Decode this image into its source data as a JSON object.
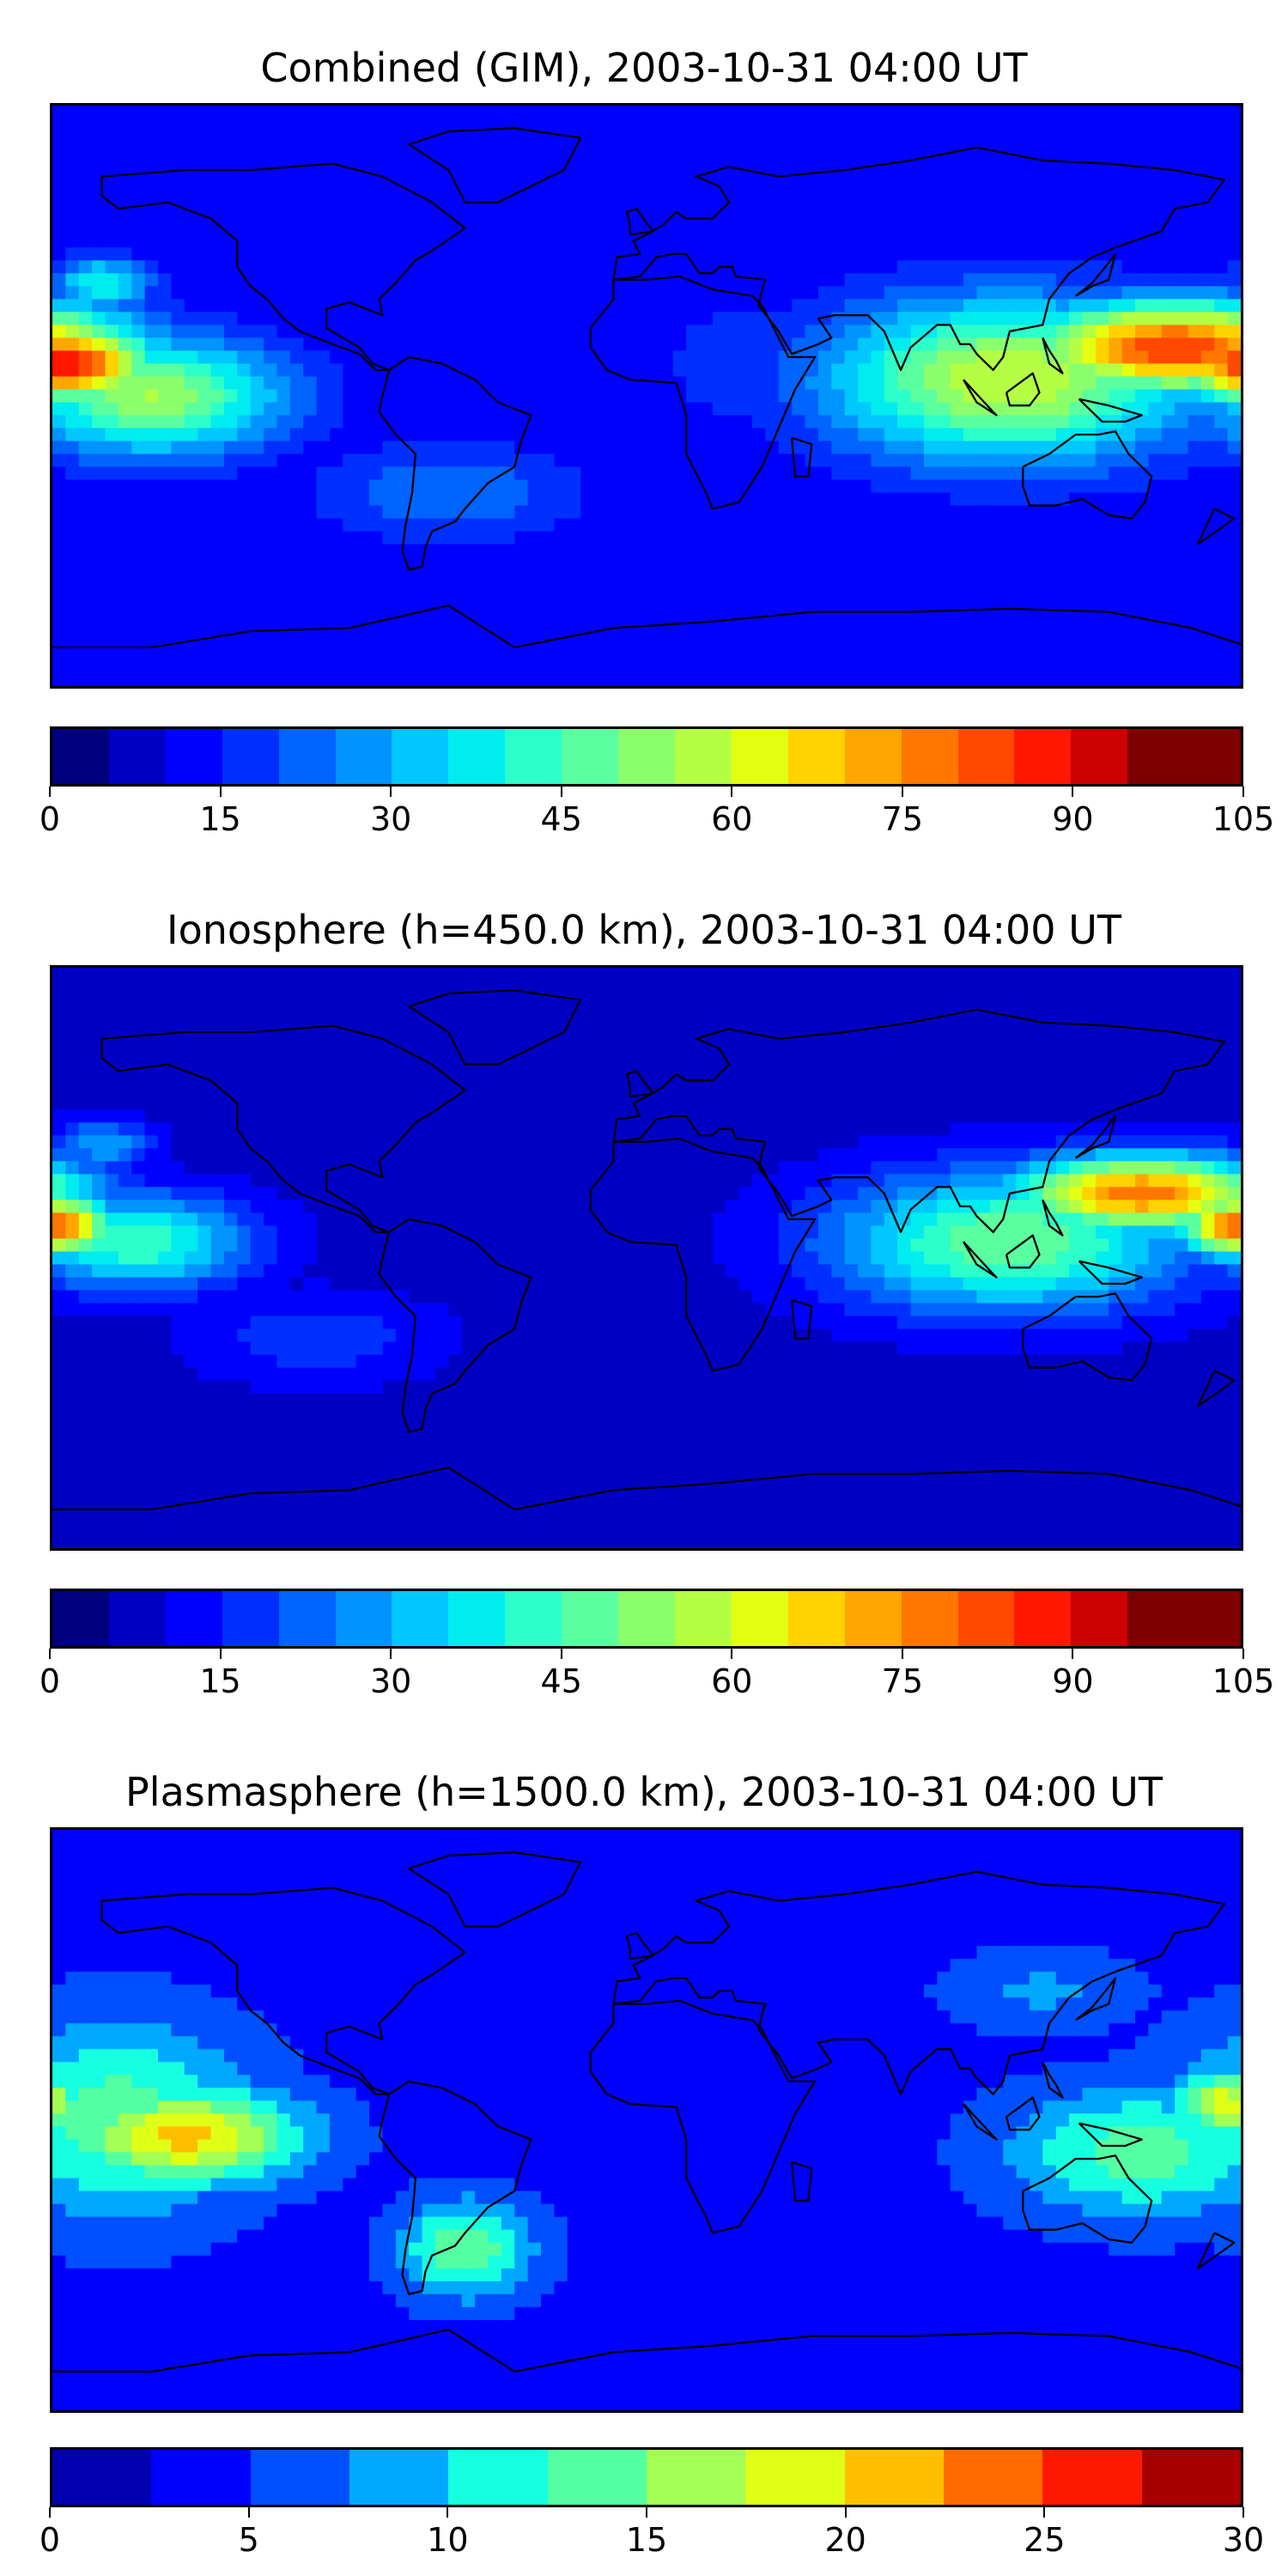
{
  "panels": [
    {
      "title": "Combined (GIM), 2003-10-31 04:00 UT",
      "colorbar": {
        "min": 0,
        "max": 105,
        "step": 5,
        "ticks": [
          "0",
          "15",
          "30",
          "45",
          "60",
          "75",
          "90",
          "105"
        ],
        "colors": [
          "#00007f",
          "#0000c4",
          "#0000ff",
          "#0030ff",
          "#0064ff",
          "#0094ff",
          "#00c8ff",
          "#00ecee",
          "#2dffca",
          "#5affa0",
          "#8bff6b",
          "#b4ff44",
          "#e5ff10",
          "#ffd200",
          "#ffa600",
          "#ff7700",
          "#ff4800",
          "#ff1700",
          "#cc0000",
          "#7f0000",
          "#7f0000"
        ]
      },
      "background_level": 10,
      "blobs": [
        {
          "lon": 160,
          "lat": 15,
          "level": 85,
          "spread": [
            45,
            14
          ]
        },
        {
          "lon": 110,
          "lat": 5,
          "level": 60,
          "spread": [
            55,
            25
          ]
        },
        {
          "lon": -175,
          "lat": 10,
          "level": 90,
          "spread": [
            25,
            12
          ]
        },
        {
          "lon": -150,
          "lat": 0,
          "level": 55,
          "spread": [
            40,
            18
          ]
        },
        {
          "lon": -165,
          "lat": 35,
          "level": 40,
          "spread": [
            15,
            8
          ]
        },
        {
          "lon": -60,
          "lat": -30,
          "level": 25,
          "spread": [
            40,
            15
          ]
        },
        {
          "lon": 30,
          "lat": 10,
          "level": 20,
          "spread": [
            25,
            20
          ]
        }
      ]
    },
    {
      "title": "Ionosphere  (h=450.0 km), 2003-10-31 04:00 UT",
      "colorbar": {
        "min": 0,
        "max": 105,
        "step": 5,
        "ticks": [
          "0",
          "15",
          "30",
          "45",
          "60",
          "75",
          "90",
          "105"
        ],
        "colors": [
          "#00007f",
          "#0000c4",
          "#0000ff",
          "#0030ff",
          "#0064ff",
          "#0094ff",
          "#00c8ff",
          "#00ecee",
          "#2dffca",
          "#5affa0",
          "#8bff6b",
          "#b4ff44",
          "#e5ff10",
          "#ffd200",
          "#ffa600",
          "#ff7700",
          "#ff4800",
          "#ff1700",
          "#cc0000",
          "#7f0000",
          "#7f0000"
        ]
      },
      "background_level": 7,
      "blobs": [
        {
          "lon": 150,
          "lat": 20,
          "level": 78,
          "spread": [
            40,
            12
          ]
        },
        {
          "lon": 110,
          "lat": 5,
          "level": 50,
          "spread": [
            55,
            22
          ]
        },
        {
          "lon": -180,
          "lat": 10,
          "level": 80,
          "spread": [
            20,
            10
          ]
        },
        {
          "lon": -155,
          "lat": 5,
          "level": 45,
          "spread": [
            35,
            15
          ]
        },
        {
          "lon": -165,
          "lat": 35,
          "level": 30,
          "spread": [
            15,
            8
          ]
        },
        {
          "lon": -100,
          "lat": -25,
          "level": 18,
          "spread": [
            40,
            15
          ]
        }
      ]
    },
    {
      "title": "Plasmasphere (h=1500.0 km), 2003-10-31 04:00 UT",
      "colorbar": {
        "min": 0,
        "max": 30,
        "step": 2.5,
        "ticks": [
          "0",
          "5",
          "10",
          "15",
          "20",
          "25",
          "30"
        ],
        "colors": [
          "#0000b0",
          "#0000ff",
          "#0050ff",
          "#00a8ff",
          "#16ffe0",
          "#54ffa3",
          "#a3ff54",
          "#e0ff16",
          "#ffbe00",
          "#ff6a00",
          "#ff1800",
          "#a80000",
          "#a80000"
        ]
      },
      "background_level": 4,
      "blobs": [
        {
          "lon": -140,
          "lat": -5,
          "level": 21,
          "spread": [
            35,
            15
          ]
        },
        {
          "lon": -160,
          "lat": 0,
          "level": 14,
          "spread": [
            40,
            30
          ]
        },
        {
          "lon": -55,
          "lat": -40,
          "level": 15,
          "spread": [
            20,
            15
          ]
        },
        {
          "lon": 150,
          "lat": -10,
          "level": 14,
          "spread": [
            40,
            20
          ]
        },
        {
          "lon": 175,
          "lat": 5,
          "level": 19,
          "spread": [
            15,
            10
          ]
        },
        {
          "lon": 120,
          "lat": 40,
          "level": 8,
          "spread": [
            30,
            12
          ]
        },
        {
          "lon": 20,
          "lat": 10,
          "level": 1,
          "spread": [
            25,
            15
          ]
        }
      ]
    }
  ]
}
